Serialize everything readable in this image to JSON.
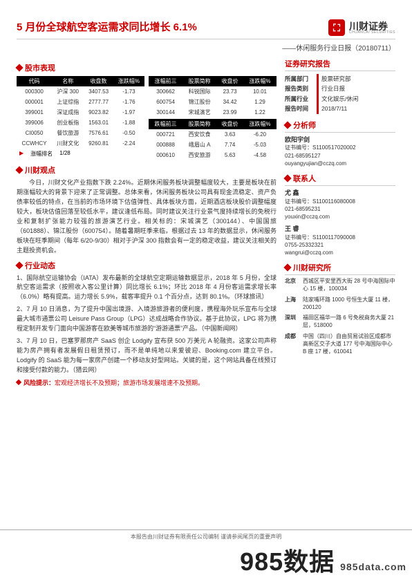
{
  "header": {
    "title": "5 月份全球航空客运需求同比增长 6.1%",
    "logo_cn": "川财证券",
    "logo_en": "CHUANCAI SECURITIES",
    "subtitle": "——休闲服务行业日报（20180711）"
  },
  "sec_market": "股市表现",
  "table_left": {
    "headers": [
      "代码",
      "名称",
      "收盘数",
      "涨跌幅%"
    ],
    "rows": [
      [
        "000300",
        "沪深 300",
        "3407.53",
        "-1.73"
      ],
      [
        "000001",
        "上证综指",
        "2777.77",
        "-1.76"
      ],
      [
        "399001",
        "深证成指",
        "9023.82",
        "-1.97"
      ],
      [
        "399006",
        "创业板指",
        "1563.01",
        "-1.88"
      ],
      [
        "CI0050",
        "餐饮旅游",
        "7576.61",
        "-0.50"
      ],
      [
        "CCWHCY",
        "川财文化",
        "9260.81",
        "-2.24"
      ]
    ]
  },
  "table_right_top": {
    "headers": [
      "涨幅前三",
      "股票简称",
      "收盘价",
      "涨跌幅%"
    ],
    "rows": [
      [
        "300662",
        "科锐国际",
        "23.73",
        "10.01"
      ],
      [
        "600754",
        "锦江股份",
        "34.42",
        "1.29"
      ],
      [
        "300144",
        "宋城演艺",
        "23.99",
        "1.22"
      ]
    ]
  },
  "table_right_bot": {
    "headers": [
      "跌幅前三",
      "股票简称",
      "收盘价",
      "涨跌幅%"
    ],
    "rows": [
      [
        "000721",
        "西安饮食",
        "3.63",
        "-6.20"
      ],
      [
        "000888",
        "峨眉山 A",
        "7.74",
        "-5.03"
      ],
      [
        "000610",
        "西安旅游",
        "5.63",
        "-4.58"
      ]
    ]
  },
  "rank": {
    "label": "涨幅排名",
    "val": "1/28"
  },
  "sec_view": "川财观点",
  "view_text": "今日，川财文化产业指数下跌 2.24%。近期休闲服务板块调整幅度较大，主要是板块在前期涨幅较大的背景下迎来了正常调整。总体来看，休闲服务板块公司具有现金流稳定、资产负债率较低的特点，在当前的市场环境下估值弹性、具体板块方面，近期酒店板块股价调整幅度较大，板块估值回落至较低水平，建议逢低布局。同时建议关注行业景气度持续增长的免税行业和复制扩张能力较强的旅游演艺行业。相关标的：宋城演艺（300144）、中国国旅（601888）、锦江股份（600754）。随着暑期旺季来临，根据过去 13 年的数据显示，休闲服务板块在旺季期间（每年 6/20-9/30）相对于沪深 300 指数会有一定的稳定收益，建议关注相关的主题投资机会。",
  "sec_news": "行业动态",
  "news": [
    "1、国际航空运输协会（IATA）发布最新的全球航空定期运输数据显示，2018 年 5 月份，全球航空客运需求（按照收入客公里计算）同比增长 6.1%；环比 2018 年 4 月份客运需求增长率（6.0%）略有提高。运力增长 5.9%，载客率提升 0.1 个百分点，达到 80.1%。（环球旅讯）",
    "2、7 月 10 日消息，为了提升中国出境游、入境游旅游者的便利度，携程海外玩乐宣布与全球最大城市通票公司 Leisure Pass Group（LPG）达成战略合作协议。基于此协议，LPG 将为携程定制开发专门面向中国游客在欧美等城市旅游的“游游通票”产品。（中国新闻网）",
    "3、7 月 10 日，巴塞罗那房产 SaaS 创企 Lodgify 宣布获 500 万美元 A 轮融资。这家公司声称能为房产拥有者发展假日租赁预订，而不是单纯地以来爱彼迎、Booking.com 建立平台。Lodgify 的 SaaS 能为每一家房产创建一个移动友好型网站。关键的是，这个网站具备在线预订和接受付款的能力。（猎云网）"
  ],
  "risk": {
    "label": "风险提示：",
    "text": "宏观经济增长不及预期；旅游市场发展增速不及预期。"
  },
  "side_report": {
    "title": "证券研究报告",
    "rows": [
      {
        "k": "所属部门",
        "v": "股票研究部"
      },
      {
        "k": "报告类别",
        "v": "行业日报"
      },
      {
        "k": "所属行业",
        "v": "文化娱乐/休闲"
      },
      {
        "k": "报告时间",
        "v": "2018/7/11"
      }
    ]
  },
  "sec_analyst": "分析师",
  "analysts": [
    {
      "name": "欧阳宇剑",
      "cert": "证书编号：S1100517020002",
      "tel": "021-68595127",
      "mail": "ouyangyujian@cczq.com"
    }
  ],
  "sec_contact": "联系人",
  "contacts": [
    {
      "name": "尤 鑫",
      "cert": "证书编号：S1100116080008",
      "tel": "021-68595231",
      "mail": "youxin@cczq.com"
    },
    {
      "name": "王 睿",
      "cert": "证书编号：S1100117090008",
      "tel": "0755-25332321",
      "mail": "wangrui@cczq.com"
    }
  ],
  "sec_inst": "川财研究所",
  "addresses": [
    {
      "city": "北京",
      "adr": "西城区平安里西大街 28 号中海国际中心 15 楼，100034"
    },
    {
      "city": "上海",
      "adr": "陆家嘴环路 1000 号恒生大厦 11 楼，200120"
    },
    {
      "city": "深圳",
      "adr": "福田区福华一路 6 号免税商务大厦 21 层，518000"
    },
    {
      "city": "成都",
      "adr": "中国（四川）自由贸易试验区成都市高新区交子大道 177 号中海国际中心 B 座 17 楼，610041"
    }
  ],
  "footer": "本报告由川财证券有限责任公司编制 谨请参阅尾页的重要声明",
  "wm": {
    "main": "985数据",
    "sub": "985data.com"
  }
}
